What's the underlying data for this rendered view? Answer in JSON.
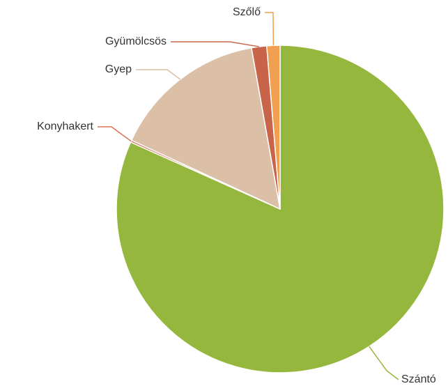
{
  "chart_data": {
    "type": "pie",
    "categories": [
      "Szántó",
      "Konyhakert",
      "Gyep",
      "Gyümölcsös",
      "Szőlő"
    ],
    "values": [
      81.7,
      0.2,
      15.3,
      1.5,
      1.3
    ],
    "colors": [
      "#95b73e",
      "#d9745a",
      "#dbbfa6",
      "#c8644a",
      "#f0a050"
    ]
  }
}
